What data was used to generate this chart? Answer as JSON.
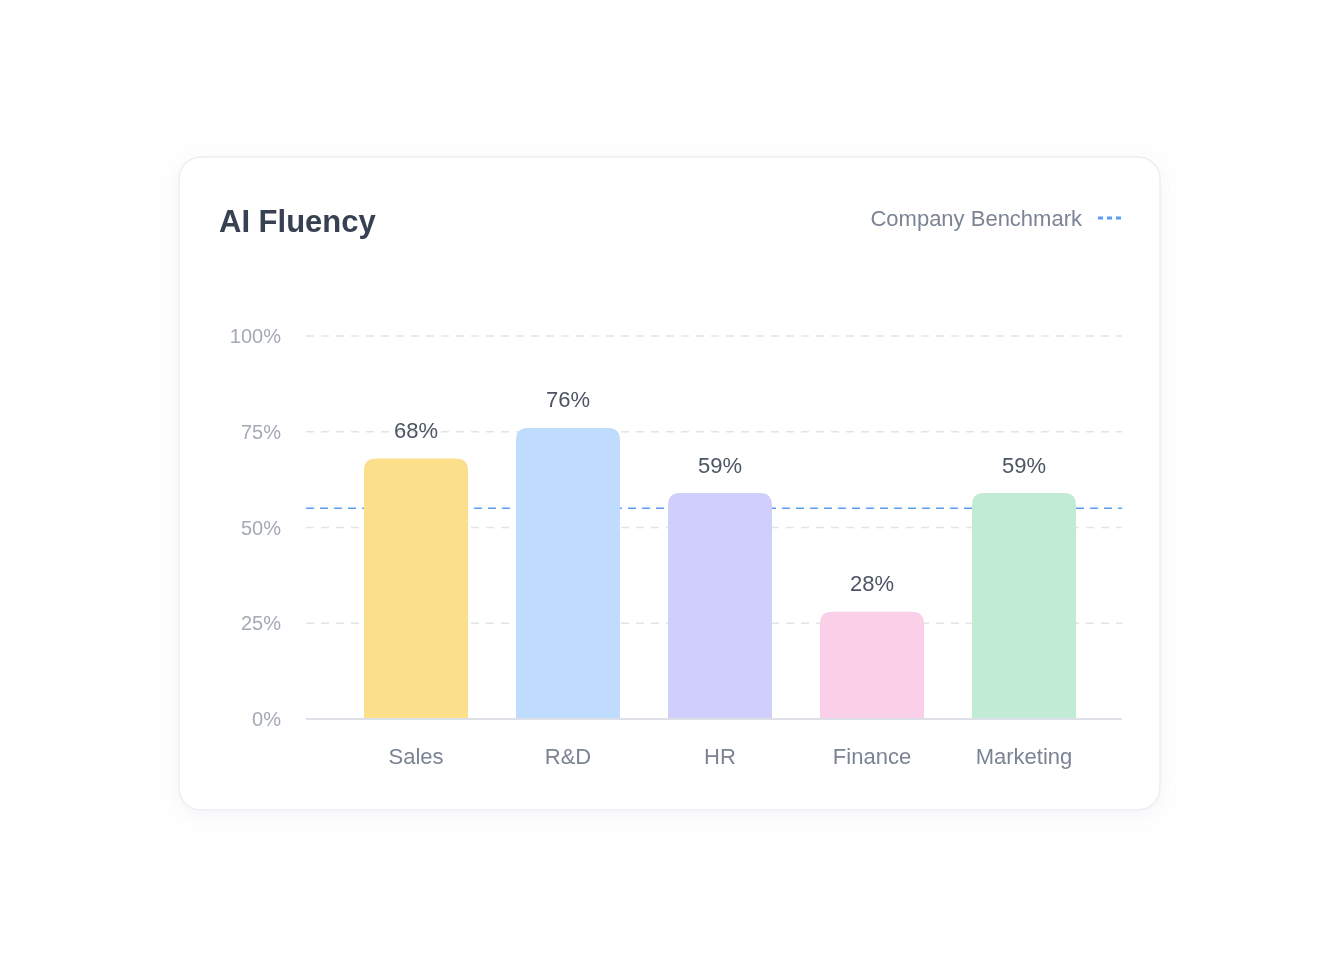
{
  "chart_data": {
    "type": "bar",
    "title": "AI Fluency",
    "categories": [
      "Sales",
      "R&D",
      "HR",
      "Finance",
      "Marketing"
    ],
    "values": [
      68,
      76,
      59,
      28,
      59
    ],
    "value_labels": [
      "68%",
      "76%",
      "59%",
      "28%",
      "59%"
    ],
    "colors": [
      "#fcdf8a",
      "#bfdbfe",
      "#d0cefb",
      "#f9d0e8",
      "#c2ebd5"
    ],
    "ylim": [
      0,
      100
    ],
    "yticks": [
      {
        "value": 0,
        "label": "0%"
      },
      {
        "value": 25,
        "label": "25%"
      },
      {
        "value": 50,
        "label": "50%"
      },
      {
        "value": 75,
        "label": "75%"
      },
      {
        "value": 100,
        "label": "100%"
      }
    ],
    "grid": "y",
    "ref_lines": [
      {
        "axis": "y",
        "value": 55,
        "label": "Company Benchmark",
        "color": "#5b9cf8",
        "line_style": "dashed"
      }
    ],
    "legend": "top right"
  }
}
